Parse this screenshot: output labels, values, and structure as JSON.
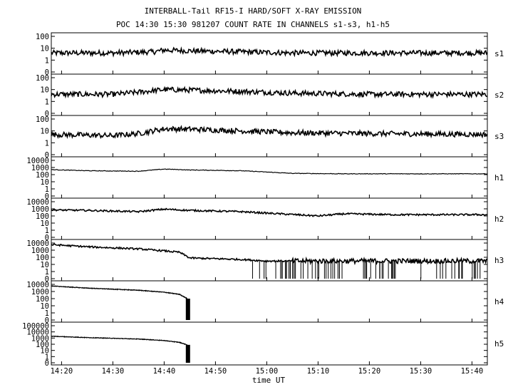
{
  "chart_data": {
    "type": "line",
    "title": "INTERBALL-Tail RF15-I HARD/SOFT X-RAY EMISSION",
    "subtitle": "POC 14:30 15:30 981207  COUNT RATE IN CHANNELS s1-s3, h1-h5",
    "xlabel": "time UT",
    "x_ticks": [
      "14:20",
      "14:30",
      "14:40",
      "14:50",
      "15:00",
      "15:10",
      "15:20",
      "15:30",
      "15:40"
    ],
    "xlim": [
      "14:18",
      "15:43"
    ],
    "grid": false,
    "y_scale": "log",
    "panels": [
      {
        "name": "s1",
        "y_ticks": [
          "100",
          "10",
          "1",
          "0"
        ],
        "series": [
          {
            "x": [
              "14:18",
              "14:30",
              "14:38",
              "14:40",
              "14:45",
              "14:55",
              "15:05",
              "15:20",
              "15:43"
            ],
            "y": [
              4,
              4,
              5,
              7,
              6,
              5,
              4,
              4,
              4
            ]
          }
        ]
      },
      {
        "name": "s2",
        "y_ticks": [
          "100",
          "10",
          "1",
          "0"
        ],
        "series": [
          {
            "x": [
              "14:18",
              "14:30",
              "14:35",
              "14:40",
              "14:45",
              "14:55",
              "15:05",
              "15:20",
              "15:43"
            ],
            "y": [
              4,
              4,
              6,
              10,
              9,
              7,
              5,
              4,
              4
            ]
          }
        ]
      },
      {
        "name": "s3",
        "y_ticks": [
          "100",
          "10",
          "1",
          "0"
        ],
        "series": [
          {
            "x": [
              "14:18",
              "14:30",
              "14:35",
              "14:40",
              "14:45",
              "14:55",
              "15:05",
              "15:20",
              "15:43"
            ],
            "y": [
              5,
              4,
              6,
              15,
              14,
              10,
              7,
              6,
              5
            ]
          }
        ]
      },
      {
        "name": "h1",
        "y_ticks": [
          "10000",
          "1000",
          "100",
          "10",
          "1",
          "0"
        ],
        "series": [
          {
            "x": [
              "14:18",
              "14:25",
              "14:35",
              "14:40",
              "14:45",
              "14:55",
              "15:05",
              "15:15",
              "15:25",
              "15:43"
            ],
            "y": [
              500,
              350,
              300,
              600,
              450,
              350,
              150,
              130,
              130,
              130
            ]
          }
        ]
      },
      {
        "name": "h2",
        "y_ticks": [
          "10000",
          "1000",
          "100",
          "10",
          "1",
          "0"
        ],
        "series": [
          {
            "x": [
              "14:18",
              "14:25",
              "14:35",
              "14:40",
              "14:45",
              "14:55",
              "15:00",
              "15:05",
              "15:10",
              "15:15",
              "15:25",
              "15:43"
            ],
            "y": [
              700,
              600,
              400,
              900,
              600,
              400,
              250,
              160,
              100,
              200,
              150,
              150
            ]
          }
        ]
      },
      {
        "name": "h3",
        "y_ticks": [
          "10000",
          "1000",
          "100",
          "10",
          "1",
          "0"
        ],
        "series": [
          {
            "x": [
              "14:18",
              "14:25",
              "14:35",
              "14:40",
              "14:43",
              "14:45",
              "14:55",
              "15:00",
              "15:43"
            ],
            "y": [
              6000,
              3000,
              1500,
              800,
              500,
              80,
              50,
              30,
              30
            ]
          }
        ]
      },
      {
        "name": "h4",
        "y_ticks": [
          "10000",
          "1000",
          "100",
          "10",
          "1",
          "0"
        ],
        "series": [
          {
            "x": [
              "14:18",
              "14:25",
              "14:35",
              "14:40",
              "14:43",
              "14:44.5"
            ],
            "y": [
              6000,
              3000,
              1500,
              800,
              400,
              100
            ]
          }
        ]
      },
      {
        "name": "h5",
        "y_ticks": [
          "100000",
          "10000",
          "1000",
          "100",
          "10",
          "1",
          "0"
        ],
        "series": [
          {
            "x": [
              "14:18",
              "14:25",
              "14:35",
              "14:40",
              "14:43",
              "14:44.5"
            ],
            "y": [
              2000,
              1200,
              700,
              400,
              200,
              80
            ]
          }
        ]
      }
    ]
  }
}
